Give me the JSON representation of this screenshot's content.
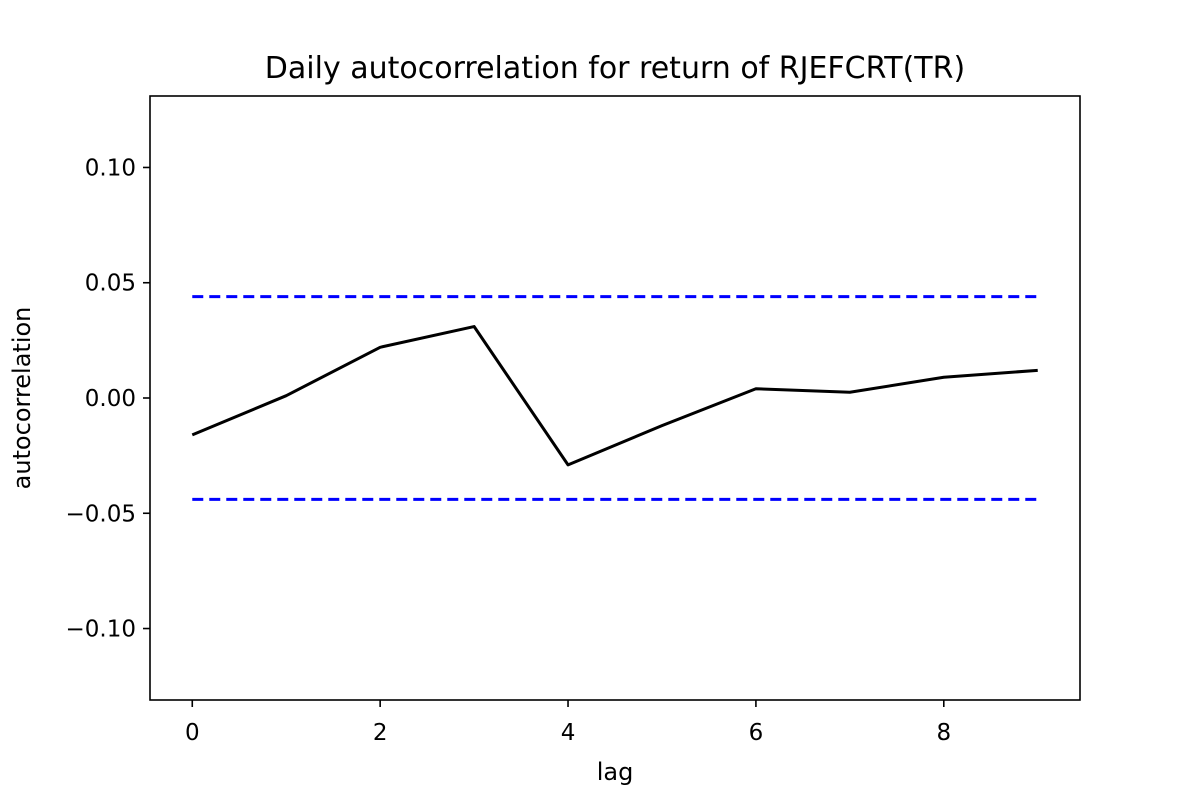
{
  "chart_data": {
    "type": "line",
    "title": "Daily autocorrelation for  return of RJEFCRT(TR)",
    "xlabel": "lag",
    "ylabel": "autocorrelation",
    "xlim": [
      -0.45,
      9.45
    ],
    "ylim": [
      -0.131,
      0.131
    ],
    "xticks": [
      0,
      2,
      4,
      6,
      8
    ],
    "yticks": [
      0.1,
      0.05,
      0.0,
      -0.05,
      -0.1
    ],
    "ytick_labels": [
      "0.10",
      "0.05",
      "0.00",
      "−0.05",
      "−0.10"
    ],
    "grid": false,
    "x": [
      0,
      1,
      2,
      3,
      4,
      5,
      6,
      7,
      8,
      9
    ],
    "series": [
      {
        "values": [
          -0.016,
          0.001,
          0.022,
          0.031,
          -0.029,
          -0.012,
          0.004,
          0.0025,
          0.009,
          0.012
        ],
        "color": "#000000",
        "style": "solid"
      }
    ],
    "reference_lines": [
      {
        "y": 0.044,
        "color": "#0000ff",
        "style": "dashed"
      },
      {
        "y": -0.044,
        "color": "#0000ff",
        "style": "dashed"
      }
    ]
  }
}
